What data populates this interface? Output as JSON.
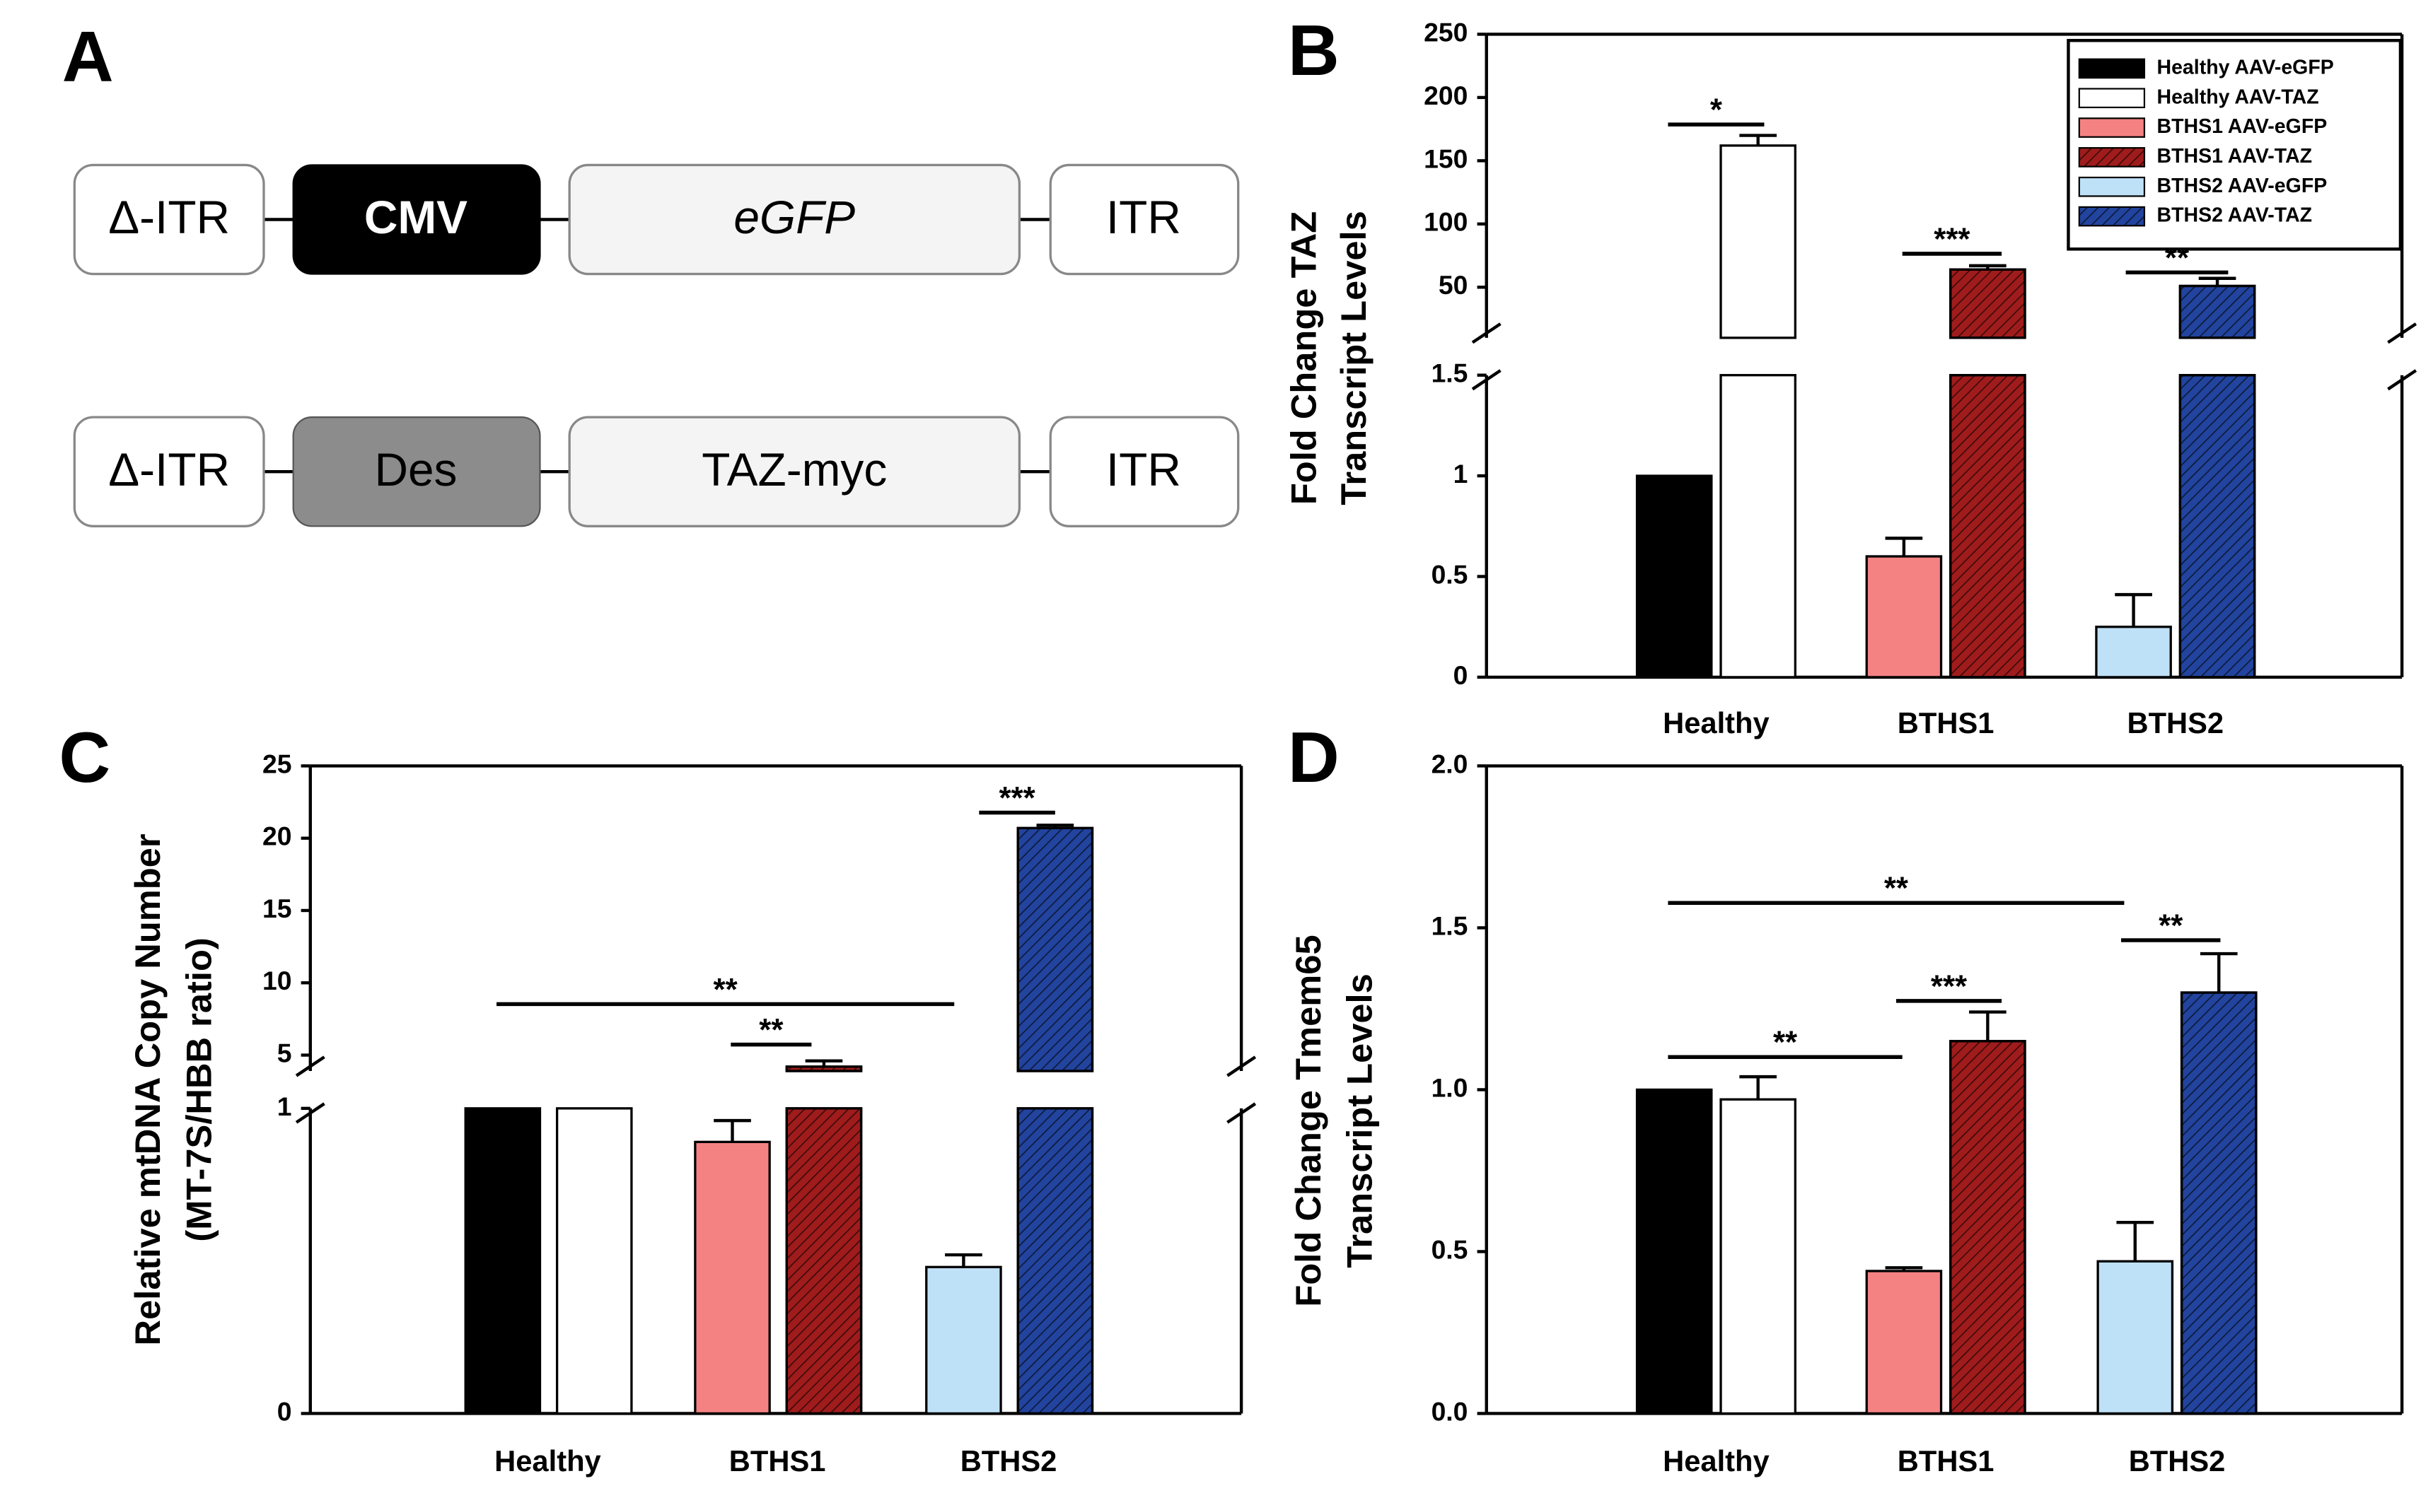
{
  "diagram": {
    "label": "A",
    "rows": [
      [
        "Δ-ITR",
        "CMV",
        "eGFP",
        "ITR"
      ],
      [
        "Δ-ITR",
        "Des",
        "TAZ-myc",
        "ITR"
      ]
    ]
  },
  "chart_data": [
    {
      "type": "bar",
      "label": "B",
      "ylabel": [
        "Fold Change TAZ",
        "Transcript Levels"
      ],
      "categories": [
        "Healthy",
        "BTHS1",
        "BTHS2"
      ],
      "ylim": [
        0,
        250
      ],
      "y_break": [
        1.5,
        10
      ],
      "yticks": [
        0,
        0.5,
        1,
        1.5,
        50,
        100,
        150,
        200,
        250
      ],
      "legend": "upper right",
      "series": [
        {
          "name": "Healthy AAV-eGFP",
          "color": "#000000",
          "hatch": false,
          "values": [
            1,
            null,
            null
          ],
          "errors": [
            0,
            null,
            null
          ]
        },
        {
          "name": "Healthy AAV-TAZ",
          "color": "#ffffff",
          "hatch": false,
          "values": [
            162,
            null,
            null
          ],
          "errors": [
            8,
            null,
            null
          ]
        },
        {
          "name": "BTHS1 AAV-eGFP",
          "color": "#f58282",
          "hatch": false,
          "values": [
            null,
            0.6,
            null
          ],
          "errors": [
            null,
            0.09,
            null
          ]
        },
        {
          "name": "BTHS1 AAV-TAZ",
          "color": "#a01c1c",
          "hatch": true,
          "values": [
            null,
            64,
            null
          ],
          "errors": [
            null,
            3,
            null
          ]
        },
        {
          "name": "BTHS2 AAV-eGFP",
          "color": "#bfe1f7",
          "hatch": false,
          "values": [
            null,
            null,
            0.25
          ],
          "errors": [
            null,
            null,
            0.16
          ]
        },
        {
          "name": "BTHS2 AAV-TAZ",
          "color": "#22449e",
          "hatch": true,
          "values": [
            null,
            null,
            51
          ],
          "errors": [
            null,
            null,
            6
          ]
        }
      ],
      "annotations": [
        "*",
        "***",
        "**"
      ]
    },
    {
      "type": "bar",
      "label": "C",
      "ylabel": [
        "Relative mtDNA Copy Number",
        "(MT-7S/HBB ratio)"
      ],
      "categories": [
        "Healthy",
        "BTHS1",
        "BTHS2"
      ],
      "ylim": [
        0,
        25
      ],
      "y_break": [
        1,
        3.9
      ],
      "yticks": [
        0,
        1,
        5,
        10,
        15,
        20,
        25
      ],
      "series": [
        {
          "name": "Healthy AAV-eGFP",
          "color": "#000000",
          "hatch": false,
          "values": [
            1,
            null,
            null
          ],
          "errors": [
            0,
            null,
            null
          ]
        },
        {
          "name": "Healthy AAV-TAZ",
          "color": "#ffffff",
          "hatch": false,
          "values": [
            1,
            null,
            null
          ],
          "errors": [
            0,
            null,
            null
          ]
        },
        {
          "name": "BTHS1 AAV-eGFP",
          "color": "#f58282",
          "hatch": false,
          "values": [
            null,
            0.89,
            null
          ],
          "errors": [
            null,
            0.07,
            null
          ]
        },
        {
          "name": "BTHS1 AAV-TAZ",
          "color": "#a01c1c",
          "hatch": true,
          "values": [
            null,
            4.2,
            null
          ],
          "errors": [
            null,
            0.4,
            null
          ]
        },
        {
          "name": "BTHS2 AAV-eGFP",
          "color": "#bfe1f7",
          "hatch": false,
          "values": [
            null,
            null,
            0.48
          ],
          "errors": [
            null,
            null,
            0.04
          ]
        },
        {
          "name": "BTHS2 AAV-TAZ",
          "color": "#22449e",
          "hatch": true,
          "values": [
            null,
            null,
            20.7
          ],
          "errors": [
            null,
            null,
            0.2
          ]
        }
      ],
      "annotations": [
        "**",
        "**",
        "***"
      ]
    },
    {
      "type": "bar",
      "label": "D",
      "ylabel": [
        "Fold Change Tmem65",
        "Transcript Levels"
      ],
      "categories": [
        "Healthy",
        "BTHS1",
        "BTHS2"
      ],
      "ylim": [
        0,
        2
      ],
      "yticks": [
        {
          "value": 0,
          "label": "0.0"
        },
        0.5,
        {
          "value": 1,
          "label": "1.0"
        },
        1.5,
        {
          "value": 2,
          "label": "2.0"
        }
      ],
      "series": [
        {
          "name": "Healthy AAV-eGFP",
          "color": "#000000",
          "hatch": false,
          "values": [
            1,
            null,
            null
          ],
          "errors": [
            0,
            null,
            null
          ]
        },
        {
          "name": "Healthy AAV-TAZ",
          "color": "#ffffff",
          "hatch": false,
          "values": [
            0.97,
            null,
            null
          ],
          "errors": [
            0.07,
            null,
            null
          ]
        },
        {
          "name": "BTHS1 AAV-eGFP",
          "color": "#f58282",
          "hatch": false,
          "values": [
            null,
            0.44,
            null
          ],
          "errors": [
            null,
            0.01,
            null
          ]
        },
        {
          "name": "BTHS1 AAV-TAZ",
          "color": "#a01c1c",
          "hatch": true,
          "values": [
            null,
            1.15,
            null
          ],
          "errors": [
            null,
            0.09,
            null
          ]
        },
        {
          "name": "BTHS2 AAV-eGFP",
          "color": "#bfe1f7",
          "hatch": false,
          "values": [
            null,
            null,
            0.47
          ],
          "errors": [
            null,
            null,
            0.12
          ]
        },
        {
          "name": "BTHS2 AAV-TAZ",
          "color": "#22449e",
          "hatch": true,
          "values": [
            null,
            null,
            1.3
          ],
          "errors": [
            null,
            null,
            0.12
          ]
        }
      ],
      "annotations": [
        "**",
        "**",
        "***",
        "**"
      ]
    }
  ]
}
